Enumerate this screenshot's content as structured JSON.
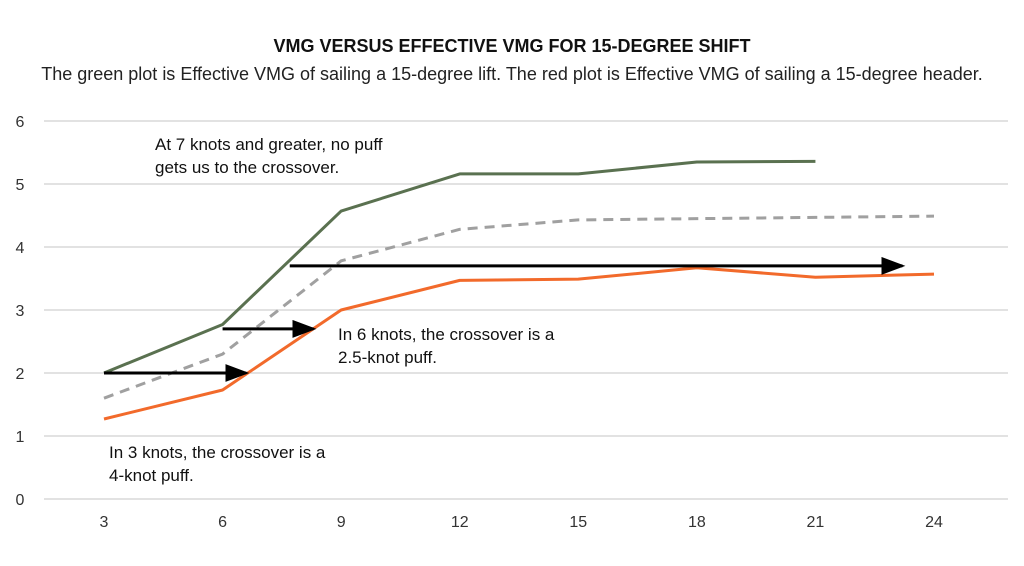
{
  "chart_data": {
    "type": "line",
    "title": "VMG VERSUS EFFECTIVE VMG FOR 15-DEGREE SHIFT",
    "subtitle": "The green plot is Effective VMG of sailing a 15-degree lift. The red plot is Effective VMG of sailing a 15-degree header.",
    "xlabel": "",
    "ylabel": "",
    "x": [
      3,
      6,
      9,
      12,
      15,
      18,
      21,
      24
    ],
    "xticks": [
      "3",
      "6",
      "9",
      "12",
      "15",
      "18",
      "21",
      "24"
    ],
    "yticks": [
      "0",
      "1",
      "2",
      "3",
      "4",
      "5",
      "6"
    ],
    "ylim": [
      0,
      6
    ],
    "grid": "horizontal",
    "series": [
      {
        "color": "#5a7150",
        "style": "solid",
        "values": [
          2.0,
          2.77,
          4.57,
          5.16,
          5.16,
          5.35,
          5.36,
          null
        ]
      },
      {
        "color": "#a0a0a0",
        "style": "dashed",
        "values": [
          1.6,
          2.3,
          3.78,
          4.28,
          4.43,
          4.45,
          4.47,
          4.49
        ]
      },
      {
        "color": "#f26a2b",
        "style": "solid",
        "values": [
          1.27,
          1.73,
          3.0,
          3.47,
          3.49,
          3.67,
          3.52,
          3.57
        ]
      }
    ],
    "arrows": [
      {
        "from": [
          3,
          2.0
        ],
        "to": [
          6.6,
          2.0
        ]
      },
      {
        "from": [
          6,
          2.7
        ],
        "to": [
          8.3,
          2.7
        ]
      },
      {
        "from": [
          7.7,
          3.7
        ],
        "to": [
          23.2,
          3.7
        ]
      }
    ],
    "annotations": [
      {
        "lines": [
          "At 7 knots and greater, no puff",
          "gets us to the crossover."
        ]
      },
      {
        "lines": [
          "In 6 knots, the crossover is a",
          "2.5-knot puff."
        ]
      },
      {
        "lines": [
          "In 3 knots, the crossover is a",
          "4-knot puff."
        ]
      }
    ]
  }
}
